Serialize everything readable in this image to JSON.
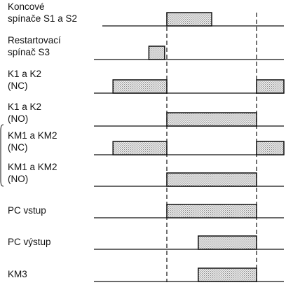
{
  "signals": [
    {
      "id": "s1s2",
      "lines": [
        "Koncové",
        "spínače S1 a S2"
      ],
      "pulses": [
        [
          1,
          2
        ]
      ]
    },
    {
      "id": "s3",
      "lines": [
        "Restartovací",
        "spínač S3"
      ],
      "pulses": [
        [
          0.6,
          0.95
        ]
      ]
    },
    {
      "id": "k-nc",
      "lines": [
        "K1 a K2",
        "(NC)"
      ],
      "pulses": [
        [
          -0.2,
          1
        ],
        [
          3,
          3.7
        ]
      ]
    },
    {
      "id": "k-no",
      "lines": [
        "K1 a K2",
        "(NO)"
      ],
      "pulses": [
        [
          1,
          3
        ]
      ]
    },
    {
      "id": "km-nc",
      "lines": [
        "KM1 a KM2",
        "(NC)"
      ],
      "pulses": [
        [
          -0.2,
          1
        ],
        [
          3,
          3.7
        ]
      ]
    },
    {
      "id": "km-no",
      "lines": [
        "KM1 a KM2",
        "(NO)"
      ],
      "pulses": [
        [
          1,
          3
        ]
      ]
    },
    {
      "id": "pc-in",
      "lines": [
        "PC vstup"
      ],
      "pulses": [
        [
          1,
          3
        ]
      ]
    },
    {
      "id": "pc-out",
      "lines": [
        "PC výstup"
      ],
      "pulses": [
        [
          1.7,
          3
        ]
      ]
    },
    {
      "id": "km3",
      "lines": [
        "KM3"
      ],
      "pulses": [
        [
          1.7,
          3
        ]
      ]
    }
  ],
  "markers": [
    1,
    3
  ]
}
